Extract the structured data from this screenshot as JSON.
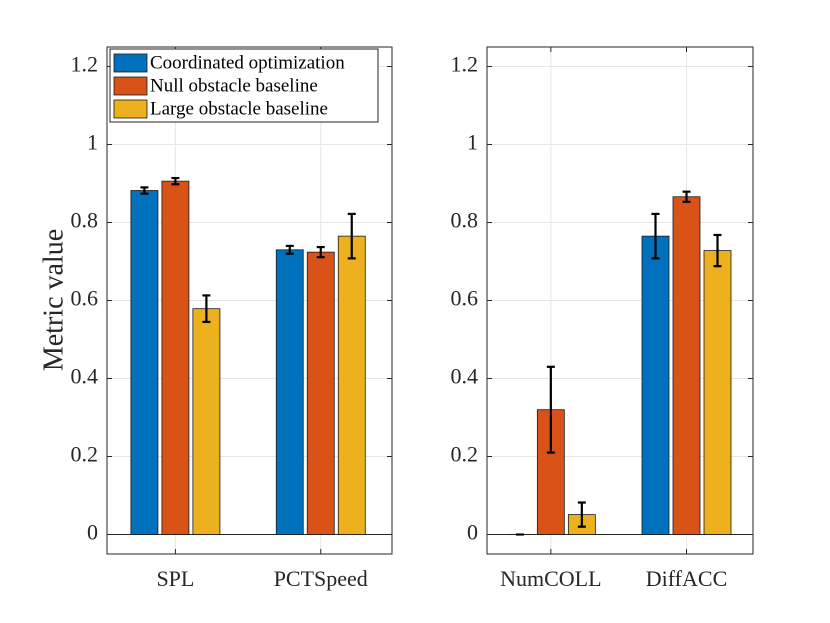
{
  "chart_data": {
    "type": "bar",
    "ylabel": "Metric value",
    "ylim": [
      -0.05,
      1.25
    ],
    "yticks": [
      {
        "value": 0,
        "label": "0"
      },
      {
        "value": 0.2,
        "label": "0.2"
      },
      {
        "value": 0.4,
        "label": "0.4"
      },
      {
        "value": 0.6,
        "label": "0.6"
      },
      {
        "value": 0.8,
        "label": "0.8"
      },
      {
        "value": 1,
        "label": "1"
      },
      {
        "value": 1.2,
        "label": "1.2"
      }
    ],
    "grid": true,
    "legend": {
      "placement": "top-left",
      "entries": [
        {
          "name": "Coordinated optimization",
          "color": "#0072BD"
        },
        {
          "name": "Null obstacle baseline",
          "color": "#D95319"
        },
        {
          "name": "Large obstacle baseline",
          "color": "#EDB120"
        }
      ]
    },
    "panels": [
      {
        "categories": [
          "SPL",
          "PCTSpeed"
        ],
        "series": [
          {
            "name": "Coordinated optimization",
            "values": [
              0.882,
              0.73
            ],
            "errors": [
              0.008,
              0.01
            ]
          },
          {
            "name": "Null obstacle baseline",
            "values": [
              0.906,
              0.724
            ],
            "errors": [
              0.008,
              0.013
            ]
          },
          {
            "name": "Large obstacle baseline",
            "values": [
              0.579,
              0.765
            ],
            "errors": [
              0.034,
              0.057
            ]
          }
        ]
      },
      {
        "categories": [
          "NumCOLL",
          "DiffACC"
        ],
        "series": [
          {
            "name": "Coordinated optimization",
            "values": [
              0.0,
              0.765
            ],
            "errors": [
              0.0,
              0.057
            ]
          },
          {
            "name": "Null obstacle baseline",
            "values": [
              0.32,
              0.866
            ],
            "errors": [
              0.11,
              0.013
            ]
          },
          {
            "name": "Large obstacle baseline",
            "values": [
              0.051,
              0.728
            ],
            "errors": [
              0.031,
              0.04
            ]
          }
        ]
      }
    ]
  }
}
